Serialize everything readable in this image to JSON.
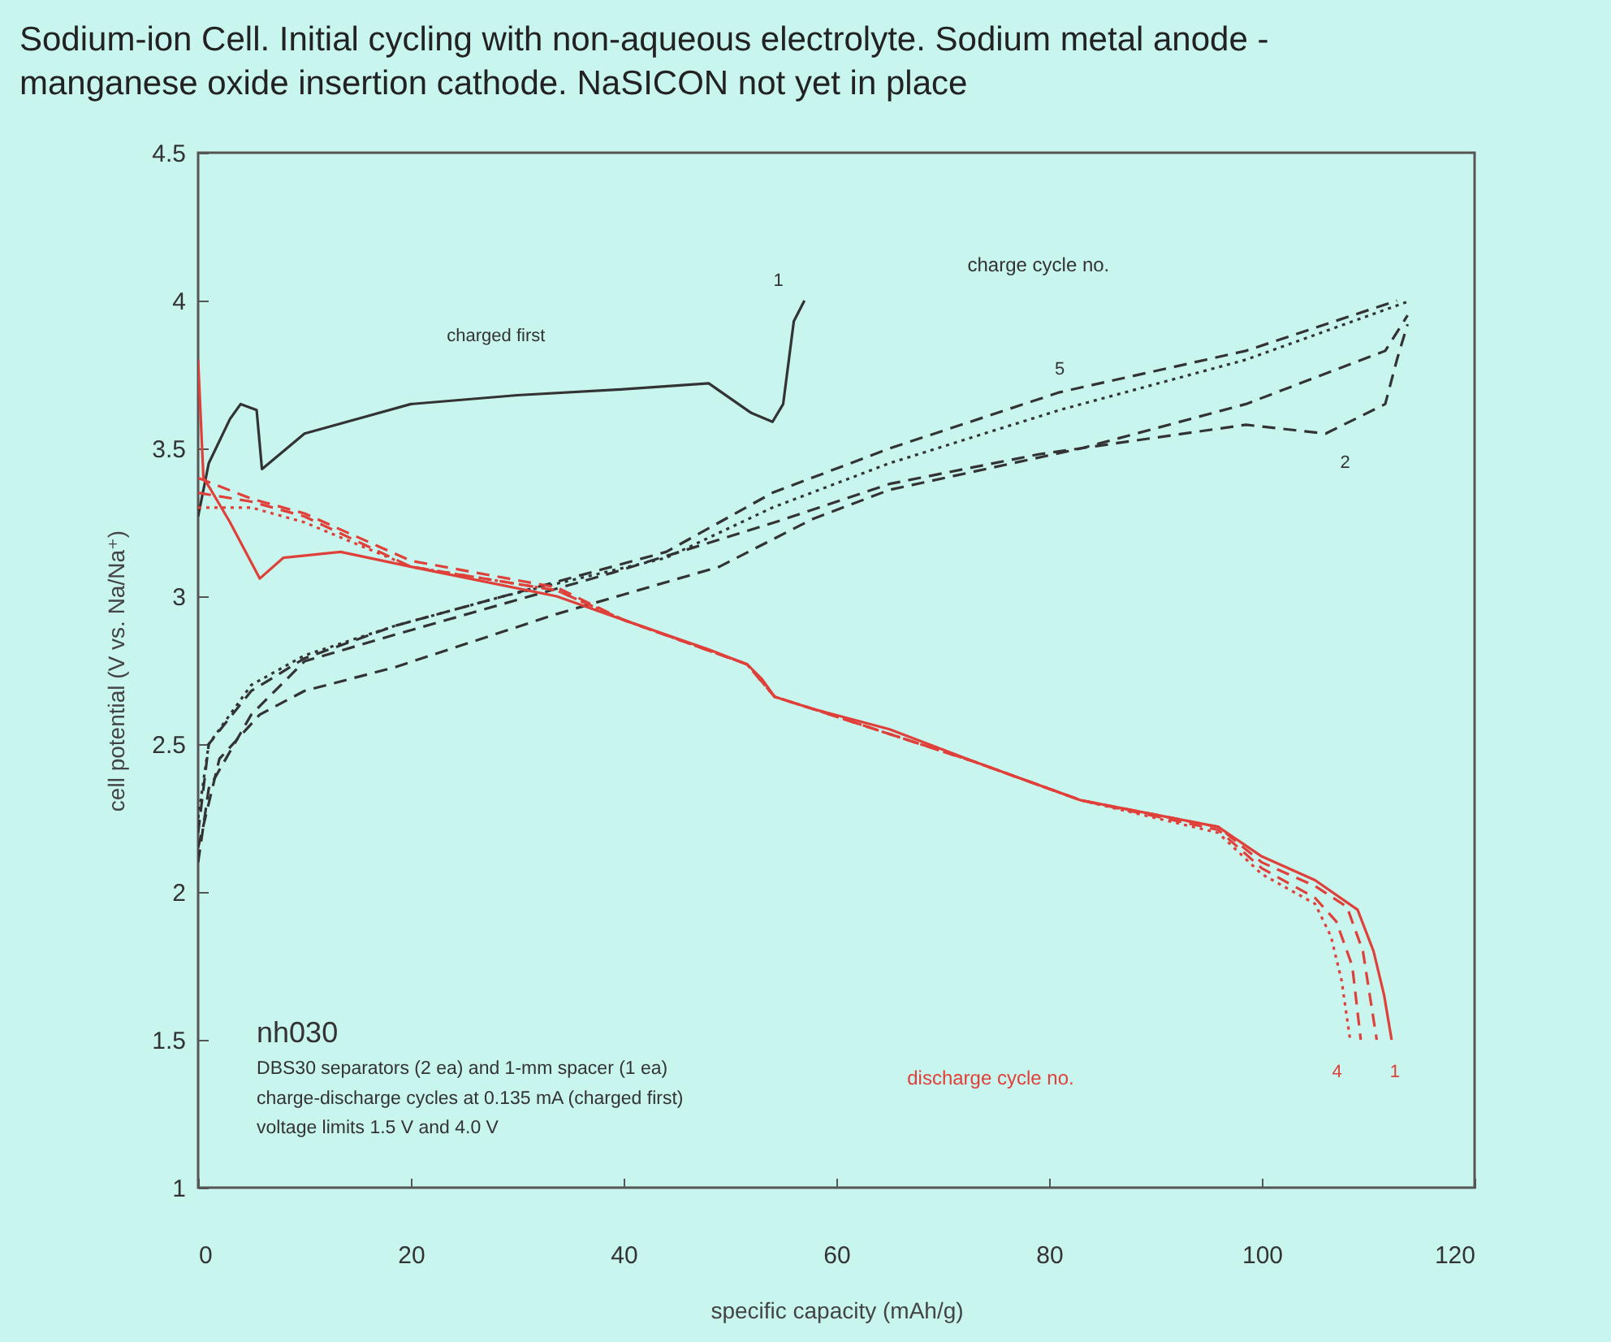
{
  "chart_data": {
    "type": "line",
    "title": "Sodium-ion Cell.  Initial cycling with non-aqueous electrolyte. Sodium metal anode - manganese oxide insertion cathode. NaSICON not yet in place",
    "xlabel": "specific capacity (mAh/g)",
    "ylabel": "cell potential (V vs. Na/Na⁺)",
    "xlim": [
      0,
      120
    ],
    "xticks": [
      0,
      20,
      40,
      60,
      80,
      100,
      120
    ],
    "ylim": [
      1,
      4.5
    ],
    "yticks": [
      1,
      1.5,
      2,
      2.5,
      3,
      3.5,
      4,
      4.5
    ],
    "annotations": [
      "charged first",
      "charge cycle no.",
      "nh030",
      "DBS30 separators (2 ea) and 1-mm spacer (1 ea)",
      "charge-discharge cycles at 0.135 mA (charged first)",
      "voltage limits 1.5 V and 4.0 V",
      "discharge cycle no."
    ],
    "series": [
      {
        "name": "1",
        "color": "#333333",
        "line_style": "solid",
        "x": [
          0,
          1,
          3,
          4,
          5.5,
          6,
          10,
          20,
          30,
          40,
          48,
          52,
          54,
          55,
          56,
          57
        ],
        "values": [
          3.27,
          3.45,
          3.6,
          3.65,
          3.63,
          3.43,
          3.55,
          3.65,
          3.68,
          3.7,
          3.72,
          3.62,
          3.59,
          3.65,
          3.93,
          4.0
        ]
      },
      {
        "name": "2",
        "color": "#333333",
        "line_style": "dashed",
        "x": [
          0,
          1,
          5,
          10,
          18.5,
          39,
          54.2,
          65,
          79,
          98.5,
          106,
          111.6,
          112.7,
          113.7
        ],
        "values": [
          2.1,
          2.35,
          2.6,
          2.78,
          2.87,
          3.08,
          3.25,
          3.38,
          3.48,
          3.58,
          3.55,
          3.65,
          3.8,
          3.92
        ]
      },
      {
        "color": "#333333",
        "line_style": "dashed",
        "x": [
          0,
          2,
          5.8,
          10,
          18.5,
          33.7,
          49,
          57.7,
          65,
          83,
          98.5,
          111.6,
          113.7
        ],
        "values": [
          2.15,
          2.45,
          2.6,
          2.68,
          2.76,
          2.94,
          3.1,
          3.26,
          3.36,
          3.5,
          3.65,
          3.83,
          3.95
        ]
      },
      {
        "color": "#333333",
        "line_style": "dotted",
        "x": [
          0,
          1,
          5,
          10,
          18.5,
          28.7,
          44,
          54,
          65,
          81,
          98.5,
          114
        ],
        "values": [
          2.25,
          2.5,
          2.7,
          2.8,
          2.9,
          3.0,
          3.13,
          3.3,
          3.45,
          3.63,
          3.8,
          4.0
        ]
      },
      {
        "name": "5",
        "color": "#333333",
        "line_style": "dashed",
        "x": [
          0,
          1,
          5,
          10,
          18.5,
          28.7,
          44,
          54,
          65,
          81,
          98.5,
          112.7
        ],
        "values": [
          2.2,
          2.5,
          2.68,
          2.79,
          2.9,
          3.0,
          3.15,
          3.35,
          3.5,
          3.69,
          3.83,
          4.0
        ]
      },
      {
        "name": "1",
        "color": "#e0403a",
        "line_style": "solid",
        "x": [
          0,
          0.5,
          1.2,
          3,
          5.8,
          8,
          13.4,
          20,
          33.7,
          40,
          48,
          51.6,
          53,
          54.2,
          57.7,
          65,
          73,
          83,
          95.9,
          100,
          105,
          109,
          110.5,
          111.5,
          112.2
        ],
        "values": [
          3.8,
          3.4,
          3.36,
          3.25,
          3.06,
          3.13,
          3.15,
          3.1,
          3.0,
          2.92,
          2.82,
          2.77,
          2.72,
          2.66,
          2.62,
          2.55,
          2.44,
          2.31,
          2.22,
          2.12,
          2.04,
          1.94,
          1.8,
          1.65,
          1.5
        ]
      },
      {
        "color": "#e0403a",
        "line_style": "dashed",
        "x": [
          0,
          5,
          10,
          20,
          33.7,
          40,
          51.6,
          54.2,
          57.7,
          73,
          83,
          95.9,
          100,
          105,
          108,
          109.5,
          110.8
        ],
        "values": [
          3.4,
          3.33,
          3.28,
          3.12,
          3.03,
          2.92,
          2.77,
          2.66,
          2.62,
          2.44,
          2.31,
          2.22,
          2.1,
          2.02,
          1.95,
          1.8,
          1.5
        ]
      },
      {
        "color": "#e0403a",
        "line_style": "dashed",
        "x": [
          0,
          5,
          10,
          20,
          33.7,
          40,
          51.6,
          54.2,
          57.7,
          73,
          83,
          95.9,
          100,
          105,
          107,
          108.5,
          109.3
        ],
        "values": [
          3.35,
          3.32,
          3.27,
          3.1,
          3.02,
          2.92,
          2.77,
          2.66,
          2.62,
          2.44,
          2.31,
          2.21,
          2.08,
          1.98,
          1.9,
          1.75,
          1.5
        ]
      },
      {
        "name": "4",
        "color": "#e0403a",
        "line_style": "dotted",
        "x": [
          0,
          5,
          10,
          20,
          33.7,
          40,
          51.6,
          54.2,
          57.7,
          73,
          83,
          95.9,
          100,
          105,
          106.5,
          107.5,
          108.3
        ],
        "values": [
          3.3,
          3.3,
          3.25,
          3.1,
          3.02,
          2.92,
          2.77,
          2.66,
          2.62,
          2.44,
          2.31,
          2.2,
          2.06,
          1.96,
          1.85,
          1.7,
          1.5
        ]
      }
    ]
  }
}
